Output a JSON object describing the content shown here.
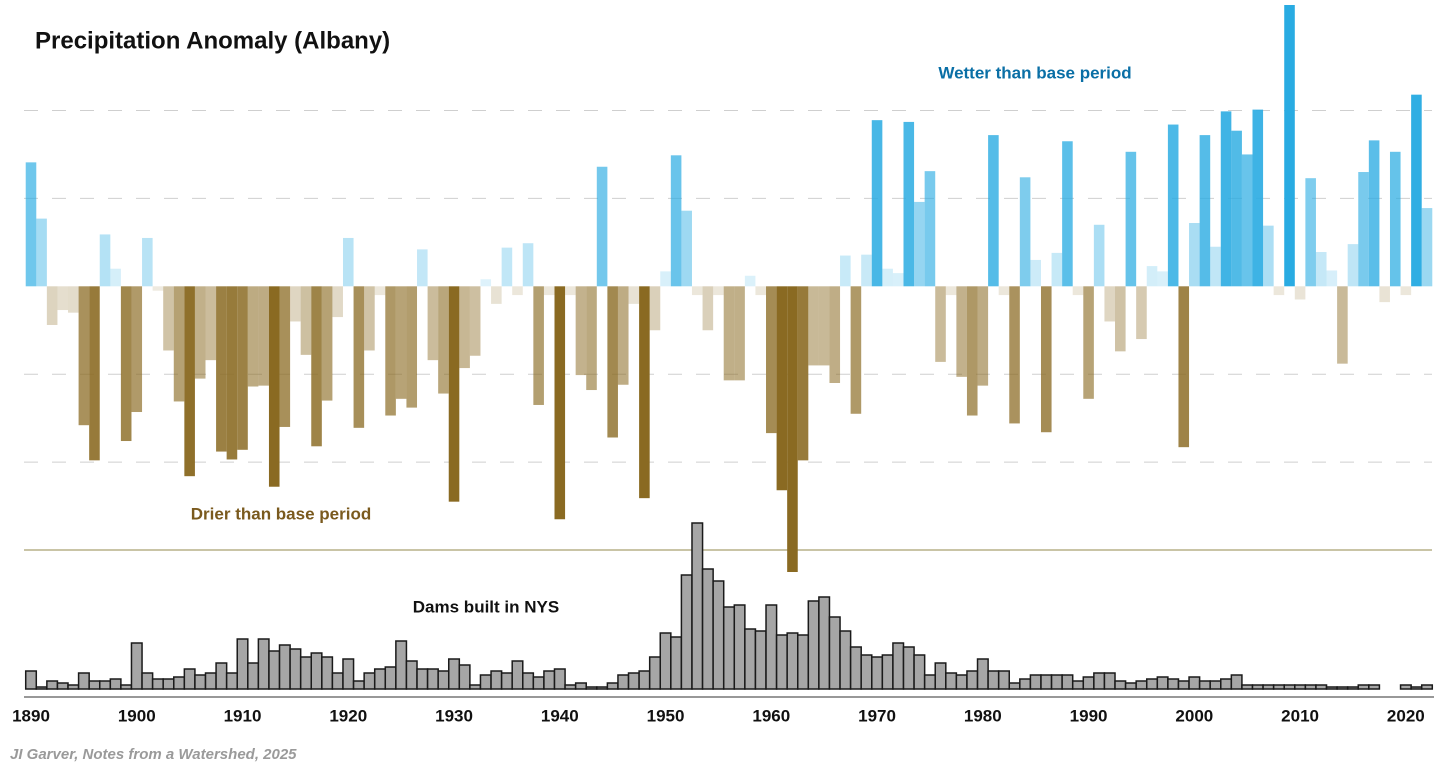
{
  "chart_data": [
    {
      "type": "bar",
      "title": "Precipitation Anomaly (Albany)",
      "annotations": [
        {
          "text": "Wetter than base period",
          "color": "#0a6fa6"
        },
        {
          "text": "Drier than base period",
          "color": "#7a5a1e"
        }
      ],
      "positive_color": "#29abe2",
      "negative_color": "#8a6a22",
      "grid": true,
      "grid_lines": [
        -3,
        -2,
        -1,
        1,
        2
      ],
      "ylim": [
        -3.25,
        3.2
      ],
      "x": [
        1890,
        1891,
        1892,
        1893,
        1894,
        1895,
        1896,
        1897,
        1898,
        1899,
        1900,
        1901,
        1902,
        1903,
        1904,
        1905,
        1906,
        1907,
        1908,
        1909,
        1910,
        1911,
        1912,
        1913,
        1914,
        1915,
        1916,
        1917,
        1918,
        1919,
        1920,
        1921,
        1922,
        1923,
        1924,
        1925,
        1926,
        1927,
        1928,
        1929,
        1930,
        1931,
        1932,
        1933,
        1934,
        1935,
        1936,
        1937,
        1938,
        1939,
        1940,
        1941,
        1942,
        1943,
        1944,
        1945,
        1946,
        1947,
        1948,
        1949,
        1950,
        1951,
        1952,
        1953,
        1954,
        1955,
        1956,
        1957,
        1958,
        1959,
        1960,
        1961,
        1962,
        1963,
        1964,
        1965,
        1966,
        1967,
        1968,
        1969,
        1970,
        1971,
        1972,
        1973,
        1974,
        1975,
        1976,
        1977,
        1978,
        1979,
        1980,
        1981,
        1982,
        1983,
        1984,
        1985,
        1986,
        1987,
        1988,
        1989,
        1990,
        1991,
        1992,
        1993,
        1994,
        1995,
        1996,
        1997,
        1998,
        1999,
        2000,
        2001,
        2002,
        2003,
        2004,
        2005,
        2006,
        2007,
        2008,
        2009,
        2010,
        2011,
        2012,
        2013,
        2014,
        2015,
        2016,
        2017,
        2018,
        2019,
        2020,
        2021,
        2022
      ],
      "values": [
        1.41,
        0.77,
        -0.44,
        -0.27,
        -0.3,
        -1.58,
        -1.98,
        0.59,
        0.2,
        -1.76,
        -1.43,
        0.55,
        -0.05,
        -0.73,
        -1.31,
        -2.16,
        -1.05,
        -0.84,
        -1.88,
        -1.97,
        -1.86,
        -1.14,
        -1.13,
        -2.28,
        -1.6,
        -0.4,
        -0.78,
        -1.82,
        -1.3,
        -0.35,
        0.55,
        -1.61,
        -0.73,
        -0.1,
        -1.47,
        -1.28,
        -1.38,
        0.42,
        -0.84,
        -1.22,
        -2.45,
        -0.93,
        -0.79,
        0.08,
        -0.2,
        0.44,
        -0.1,
        0.49,
        -1.35,
        -0.1,
        -2.65,
        -0.1,
        -1.01,
        -1.18,
        1.36,
        -1.72,
        -1.12,
        -0.2,
        -2.41,
        -0.5,
        0.17,
        1.49,
        0.86,
        -0.1,
        -0.5,
        -0.1,
        -1.07,
        -1.07,
        0.12,
        -0.1,
        -1.67,
        -2.32,
        -3.25,
        -1.98,
        -0.9,
        -0.9,
        -1.1,
        0.35,
        -1.45,
        0.36,
        1.89,
        0.2,
        0.15,
        1.87,
        0.96,
        1.31,
        -0.86,
        -0.1,
        -1.03,
        -1.47,
        -1.13,
        1.72,
        -0.1,
        -1.56,
        1.24,
        0.3,
        -1.66,
        0.38,
        1.65,
        -0.1,
        -1.28,
        0.7,
        -0.4,
        -0.74,
        1.53,
        -0.6,
        0.23,
        0.17,
        1.84,
        -1.83,
        0.72,
        1.72,
        0.45,
        1.99,
        1.77,
        1.5,
        2.01,
        0.69,
        -0.1,
        3.2,
        -0.15,
        1.23,
        0.39,
        0.18,
        -0.88,
        0.48,
        1.3,
        1.66,
        -0.18,
        1.53,
        -0.1,
        2.18,
        0.89
      ]
    },
    {
      "type": "bar",
      "title": "Dams built in NYS",
      "color": "#a6a6a6",
      "edgecolor": "#1a1a1a",
      "ylim": [
        0,
        86
      ],
      "xticks": [
        1890,
        1900,
        1910,
        1920,
        1930,
        1940,
        1950,
        1960,
        1970,
        1980,
        1990,
        2000,
        2010,
        2020
      ],
      "x": [
        1890,
        1891,
        1892,
        1893,
        1894,
        1895,
        1896,
        1897,
        1898,
        1899,
        1900,
        1901,
        1902,
        1903,
        1904,
        1905,
        1906,
        1907,
        1908,
        1909,
        1910,
        1911,
        1912,
        1913,
        1914,
        1915,
        1916,
        1917,
        1918,
        1919,
        1920,
        1921,
        1922,
        1923,
        1924,
        1925,
        1926,
        1927,
        1928,
        1929,
        1930,
        1931,
        1932,
        1933,
        1934,
        1935,
        1936,
        1937,
        1938,
        1939,
        1940,
        1941,
        1942,
        1943,
        1944,
        1945,
        1946,
        1947,
        1948,
        1949,
        1950,
        1951,
        1952,
        1953,
        1954,
        1955,
        1956,
        1957,
        1958,
        1959,
        1960,
        1961,
        1962,
        1963,
        1964,
        1965,
        1966,
        1967,
        1968,
        1969,
        1970,
        1971,
        1972,
        1973,
        1974,
        1975,
        1976,
        1977,
        1978,
        1979,
        1980,
        1981,
        1982,
        1983,
        1984,
        1985,
        1986,
        1987,
        1988,
        1989,
        1990,
        1991,
        1992,
        1993,
        1994,
        1995,
        1996,
        1997,
        1998,
        1999,
        2000,
        2001,
        2002,
        2003,
        2004,
        2005,
        2006,
        2007,
        2008,
        2009,
        2010,
        2011,
        2012,
        2013,
        2014,
        2015,
        2016,
        2017,
        2018,
        2019,
        2020,
        2021,
        2022
      ],
      "values": [
        9,
        1,
        4,
        3,
        2,
        8,
        4,
        4,
        5,
        2,
        23,
        8,
        5,
        5,
        6,
        10,
        7,
        8,
        13,
        8,
        25,
        13,
        25,
        19,
        22,
        20,
        16,
        18,
        16,
        8,
        15,
        4,
        8,
        10,
        11,
        24,
        14,
        10,
        10,
        9,
        15,
        12,
        2,
        7,
        9,
        8,
        14,
        8,
        6,
        9,
        10,
        2,
        3,
        1,
        1,
        3,
        7,
        8,
        9,
        16,
        28,
        26,
        57,
        83,
        60,
        54,
        41,
        42,
        30,
        29,
        42,
        27,
        28,
        27,
        44,
        46,
        36,
        29,
        21,
        17,
        16,
        17,
        23,
        21,
        17,
        7,
        13,
        8,
        7,
        9,
        15,
        9,
        9,
        3,
        5,
        7,
        7,
        7,
        7,
        4,
        6,
        8,
        8,
        4,
        3,
        4,
        5,
        6,
        5,
        4,
        6,
        4,
        4,
        5,
        7,
        2,
        2,
        2,
        2,
        2,
        2,
        2,
        2,
        1,
        1,
        1,
        2,
        2,
        0,
        0,
        2,
        1,
        2
      ]
    }
  ],
  "footer": "JI Garver, Notes from a Watershed, 2025"
}
